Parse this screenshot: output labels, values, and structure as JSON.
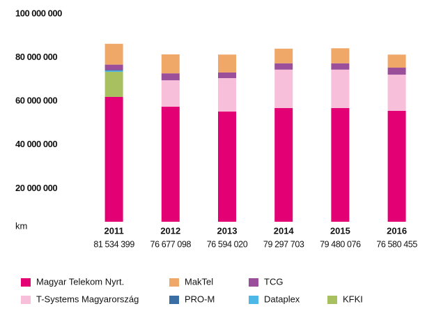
{
  "chart_data": {
    "type": "stacked_bar",
    "y_label": "km",
    "categories": [
      "2011",
      "2012",
      "2013",
      "2014",
      "2015",
      "2016"
    ],
    "totals": {
      "values": [
        81534399,
        76677098,
        76594020,
        79297703,
        79480076,
        76580455
      ],
      "value_labels": [
        "81 534 399",
        "76 677 098",
        "76 594 020",
        "79 297 703",
        "79 480 076",
        "76 580 455"
      ]
    },
    "series": [
      {
        "name": "Magyar Telekom Nyrt.",
        "color": "#e20074",
        "values": [
          57200000,
          52700000,
          50500000,
          52100000,
          52100000,
          50800000
        ]
      },
      {
        "name": "T-Systems Magyarország",
        "color": "#f7bfd9",
        "values": [
          0,
          12100000,
          15300000,
          17600000,
          17600000,
          16600000
        ]
      },
      {
        "name": "KFKI",
        "color": "#a8c060",
        "values": [
          11500000,
          0,
          0,
          0,
          0,
          0
        ]
      },
      {
        "name": "Dataplex",
        "color": "#4db8e8",
        "values": [
          500000,
          0,
          0,
          0,
          0,
          0
        ]
      },
      {
        "name": "PRO-M",
        "color": "#3a6ea5",
        "values": [
          300000,
          0,
          0,
          0,
          0,
          0
        ]
      },
      {
        "name": "TCG",
        "color": "#9b4f9b",
        "values": [
          2500000,
          3200000,
          2600000,
          2900000,
          2900000,
          3200000
        ]
      },
      {
        "name": "MakTel",
        "color": "#f0a868",
        "values": [
          9530000,
          8680000,
          8190000,
          6700000,
          6880000,
          5980000
        ]
      }
    ],
    "ylim": [
      0,
      100000000
    ],
    "yticks": [
      {
        "value": 20000000,
        "label": "20 000 000"
      },
      {
        "value": 40000000,
        "label": "40 000 000"
      },
      {
        "value": 60000000,
        "label": "60 000 000"
      },
      {
        "value": 80000000,
        "label": "80 000 000"
      },
      {
        "value": 100000000,
        "label": "100 000 000"
      }
    ],
    "grid": false
  }
}
